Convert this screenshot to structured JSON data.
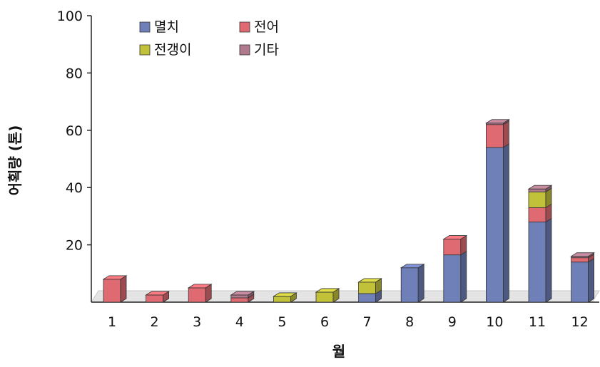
{
  "chart_data": {
    "type": "bar",
    "stacked": true,
    "style": "3d",
    "xlabel": "월",
    "ylabel": "어획량 (톤)",
    "ylim": [
      0,
      100
    ],
    "yticks": [
      20,
      40,
      60,
      80,
      100
    ],
    "categories": [
      "1",
      "2",
      "3",
      "4",
      "5",
      "6",
      "7",
      "8",
      "9",
      "10",
      "11",
      "12"
    ],
    "series": [
      {
        "name": "멸치",
        "color": "#6f7fb8",
        "values": [
          0,
          0,
          0,
          0,
          0,
          0,
          3,
          12,
          16.5,
          54,
          28,
          14
        ]
      },
      {
        "name": "전어",
        "color": "#e06a72",
        "values": [
          8,
          2.5,
          5,
          1.5,
          0,
          0,
          0,
          0,
          5.5,
          8,
          5,
          1.5
        ]
      },
      {
        "name": "전갱이",
        "color": "#c2c23a",
        "values": [
          0,
          0,
          0,
          0,
          2,
          3.5,
          4,
          0,
          0,
          0,
          5.5,
          0
        ]
      },
      {
        "name": "기타",
        "color": "#b07a8e",
        "values": [
          0,
          0,
          0,
          1,
          0,
          0,
          0,
          0,
          0,
          0.5,
          1,
          0.5
        ]
      }
    ],
    "legend_position": "top-left",
    "grid": false
  }
}
